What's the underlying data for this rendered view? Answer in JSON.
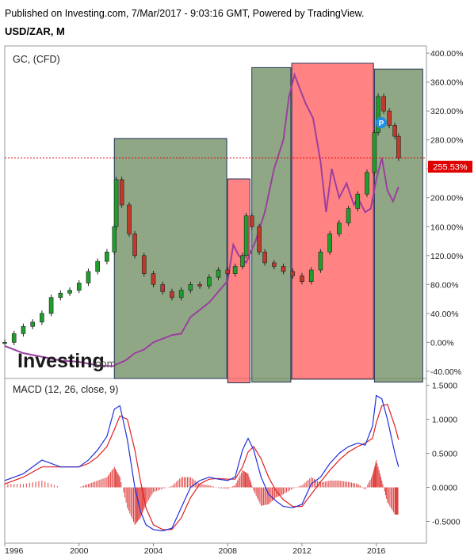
{
  "header": {
    "published_line": "Published on Investing.com, 7/Mar/2017 - 9:03:16 GMT, Powered by TradingView.",
    "symbol_line": "USD/ZAR, M"
  },
  "logo": {
    "brand": "Investing",
    "suffix": ".com"
  },
  "colors": {
    "up_candle": "#1f9e2c",
    "down_candle": "#c0392b",
    "compare_line": "#9b3fa0",
    "green_box": "#6b8a5c",
    "red_box": "#ff5a5a",
    "price_line": "#e00000",
    "macd_line": "#1f2fe0",
    "signal_line": "#e02020",
    "histogram": "#e04040"
  },
  "chart_data": [
    {
      "type": "line",
      "title": "GC,  (CFD)",
      "price_badge": "255.53%",
      "y_unit": "%",
      "ylim": [
        -50,
        410
      ],
      "y_ticks": [
        "400.00%",
        "360.00%",
        "320.00%",
        "280.00%",
        "240.00%",
        "200.00%",
        "160.00%",
        "120.00%",
        "80.00%",
        "40.00%",
        "0.00%",
        "-40.00%"
      ],
      "y_tick_values": [
        400,
        360,
        320,
        280,
        240,
        200,
        160,
        120,
        80,
        40,
        0,
        -40
      ],
      "x_year_range": [
        1996,
        2018.7
      ],
      "series": [
        {
          "kind": "candles",
          "x": [
            1996.0,
            1996.5,
            1997.0,
            1997.5,
            1998.0,
            1998.5,
            1999.0,
            1999.5,
            2000.0,
            2000.5,
            2001.0,
            2001.5,
            2001.9,
            2002.0,
            2002.3,
            2002.7,
            2003.0,
            2003.5,
            2004.0,
            2004.5,
            2005.0,
            2005.5,
            2006.0,
            2006.5,
            2007.0,
            2007.5,
            2008.0,
            2008.4,
            2008.8,
            2009.0,
            2009.3,
            2009.7,
            2010.0,
            2010.5,
            2011.0,
            2011.5,
            2012.0,
            2012.5,
            2013.0,
            2013.5,
            2014.0,
            2014.5,
            2015.0,
            2015.5,
            2015.9,
            2016.1,
            2016.4,
            2016.7,
            2017.0,
            2017.2
          ],
          "values": [
            0,
            12,
            22,
            28,
            40,
            62,
            68,
            72,
            82,
            98,
            112,
            125,
            160,
            225,
            190,
            150,
            120,
            95,
            80,
            70,
            62,
            72,
            80,
            78,
            90,
            100,
            95,
            105,
            120,
            175,
            160,
            125,
            110,
            105,
            98,
            92,
            84,
            100,
            125,
            150,
            165,
            185,
            205,
            235,
            290,
            340,
            320,
            300,
            285,
            255
          ]
        },
        {
          "kind": "line",
          "x": [
            1996.0,
            1997.0,
            1998.0,
            1999.0,
            2000.0,
            2001.0,
            2001.8,
            2002.5,
            2003.0,
            2003.5,
            2004.0,
            2004.5,
            2005.0,
            2005.5,
            2006.0,
            2006.5,
            2007.0,
            2007.5,
            2008.0,
            2008.3,
            2008.6,
            2009.0,
            2009.5,
            2010.0,
            2010.5,
            2011.0,
            2011.3,
            2011.6,
            2011.9,
            2012.2,
            2012.6,
            2013.0,
            2013.3,
            2013.6,
            2014.0,
            2014.4,
            2014.8,
            2015.0,
            2015.4,
            2015.7,
            2016.0,
            2016.3,
            2016.6,
            2016.9,
            2017.2
          ],
          "values": [
            -5,
            -15,
            -20,
            -25,
            -27,
            -32,
            -33,
            -25,
            -15,
            -10,
            0,
            5,
            10,
            12,
            35,
            45,
            55,
            70,
            85,
            135,
            120,
            110,
            140,
            180,
            240,
            280,
            340,
            370,
            350,
            330,
            310,
            250,
            180,
            240,
            200,
            220,
            190,
            200,
            180,
            185,
            225,
            255,
            210,
            195,
            215
          ]
        }
      ],
      "regions": [
        {
          "color": "green",
          "x0": 2001.9,
          "x1": 2007.95,
          "top": 282,
          "bottom": -50
        },
        {
          "color": "red",
          "x0": 2008.0,
          "x1": 2009.2,
          "top": 226,
          "bottom": -56
        },
        {
          "color": "green",
          "x0": 2009.3,
          "x1": 2011.4,
          "top": 380,
          "bottom": -55
        },
        {
          "color": "red",
          "x0": 2011.45,
          "x1": 2015.85,
          "top": 386,
          "bottom": -51
        },
        {
          "color": "green",
          "x0": 2015.9,
          "x1": 2018.5,
          "top": 378,
          "bottom": -55
        }
      ]
    },
    {
      "type": "line",
      "title": "MACD (12, 26, close, 9)",
      "ylim": [
        -0.82,
        1.6
      ],
      "y_ticks": [
        "1.5000",
        "1.0000",
        "0.5000",
        "0.0000",
        "-0.5000"
      ],
      "y_tick_values": [
        1.5,
        1.0,
        0.5,
        0.0,
        -0.5
      ],
      "x": [
        1996.0,
        1997.0,
        1998.0,
        1999.0,
        2000.0,
        2000.5,
        2001.0,
        2001.5,
        2001.9,
        2002.2,
        2002.6,
        2003.0,
        2003.3,
        2003.6,
        2004.0,
        2004.5,
        2005.0,
        2005.5,
        2006.0,
        2006.5,
        2007.0,
        2007.5,
        2008.0,
        2008.4,
        2008.8,
        2009.1,
        2009.4,
        2009.8,
        2010.2,
        2010.6,
        2011.0,
        2011.5,
        2012.0,
        2012.5,
        2013.0,
        2013.5,
        2014.0,
        2014.5,
        2015.0,
        2015.4,
        2015.8,
        2016.0,
        2016.3,
        2016.6,
        2017.0,
        2017.2
      ],
      "series": [
        {
          "name": "MACD",
          "values": [
            0.1,
            0.2,
            0.4,
            0.3,
            0.3,
            0.4,
            0.55,
            0.75,
            1.15,
            1.2,
            0.7,
            0.0,
            -0.35,
            -0.55,
            -0.62,
            -0.64,
            -0.6,
            -0.3,
            0.0,
            0.1,
            0.15,
            0.12,
            0.1,
            0.15,
            0.55,
            0.72,
            0.55,
            0.15,
            -0.1,
            -0.2,
            -0.28,
            -0.3,
            -0.25,
            0.05,
            0.15,
            0.35,
            0.5,
            0.6,
            0.65,
            0.62,
            0.9,
            1.35,
            1.3,
            1.0,
            0.5,
            0.3
          ]
        },
        {
          "name": "Signal",
          "values": [
            0.05,
            0.15,
            0.3,
            0.3,
            0.3,
            0.35,
            0.45,
            0.6,
            0.85,
            1.05,
            1.0,
            0.55,
            0.1,
            -0.3,
            -0.55,
            -0.62,
            -0.62,
            -0.45,
            -0.15,
            0.05,
            0.12,
            0.13,
            0.12,
            0.12,
            0.3,
            0.52,
            0.6,
            0.42,
            0.15,
            -0.05,
            -0.18,
            -0.28,
            -0.28,
            -0.1,
            0.08,
            0.25,
            0.4,
            0.52,
            0.6,
            0.65,
            0.72,
            0.95,
            1.2,
            1.22,
            0.9,
            0.7
          ]
        },
        {
          "name": "Histogram",
          "values": [
            0.05,
            0.05,
            0.1,
            0.0,
            0.0,
            0.05,
            0.1,
            0.15,
            0.3,
            0.15,
            -0.3,
            -0.55,
            -0.45,
            -0.25,
            -0.07,
            -0.02,
            0.02,
            0.15,
            0.15,
            0.05,
            0.03,
            -0.01,
            -0.02,
            0.03,
            0.25,
            0.2,
            -0.05,
            -0.27,
            -0.25,
            -0.15,
            -0.1,
            -0.02,
            0.03,
            0.15,
            0.07,
            0.1,
            0.1,
            0.08,
            0.05,
            -0.03,
            0.18,
            0.4,
            0.1,
            -0.22,
            -0.4,
            -0.4
          ]
        }
      ]
    }
  ],
  "x_axis": {
    "tick_labels": [
      "1996",
      "2000",
      "2004",
      "2008",
      "2012",
      "2016"
    ],
    "tick_values": [
      1996,
      2000,
      2004,
      2008,
      2012,
      2016
    ]
  }
}
